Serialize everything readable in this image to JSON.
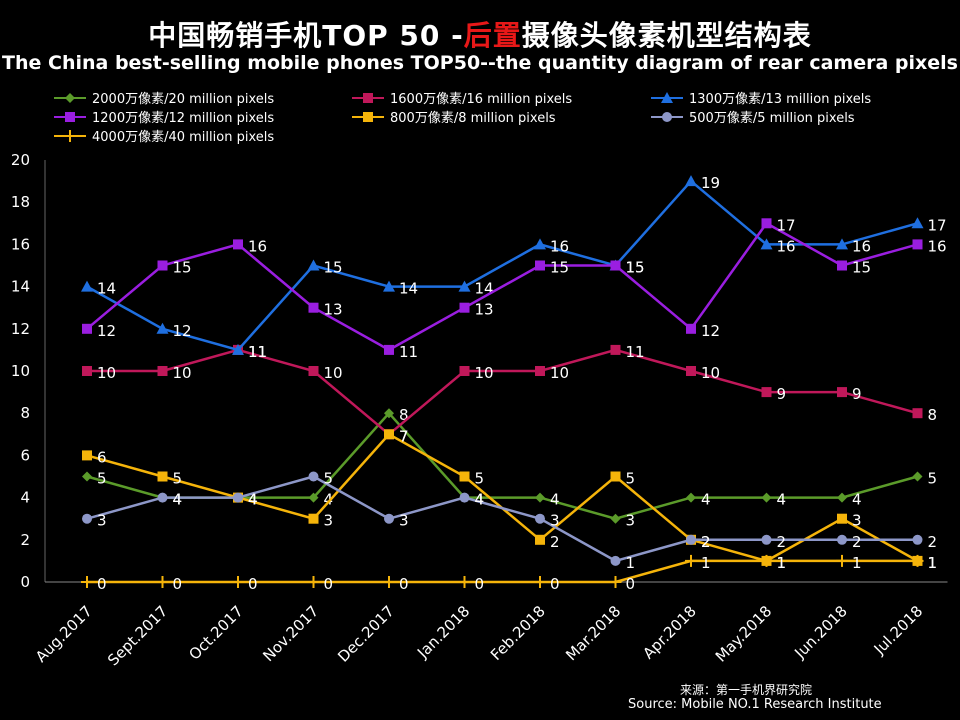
{
  "title": {
    "cn_prefix": "中国畅销手机TOP 50 -",
    "cn_highlight": "后置",
    "cn_suffix": "摄像头像素机型结构表",
    "en": "The China best-selling mobile phones TOP50--the quantity diagram of rear camera pixels"
  },
  "source": {
    "cn": "来源：第一手机界研究院",
    "en": "Source: Mobile NO.1 Research Institute"
  },
  "chart_data": {
    "type": "line",
    "title": "中国畅销手机TOP 50 -后置摄像头像素机型结构表",
    "ylim": [
      0,
      20
    ],
    "yticks": [
      0,
      2,
      4,
      6,
      8,
      10,
      12,
      14,
      16,
      18,
      20
    ],
    "categories": [
      "Aug.2017",
      "Sept.2017",
      "Oct.2017",
      "Nov.2017",
      "Dec.2017",
      "Jan.2018",
      "Feb.2018",
      "Mar.2018",
      "Apr.2018",
      "May.2018",
      "Jun.2018",
      "Jul.2018"
    ],
    "legend_position": "top",
    "series": [
      {
        "name": "2000万像素/20 million pixels",
        "color": "#5b9b2a",
        "marker": "diamond",
        "values": [
          5,
          4,
          4,
          4,
          8,
          4,
          4,
          3,
          4,
          4,
          4,
          5
        ]
      },
      {
        "name": "1600万像素/16 million pixels",
        "color": "#c0185a",
        "marker": "square",
        "values": [
          10,
          10,
          11,
          10,
          7,
          10,
          10,
          11,
          10,
          9,
          9,
          8
        ]
      },
      {
        "name": "1300万像素/13 million pixels",
        "color": "#1f6fe0",
        "marker": "triangle",
        "values": [
          14,
          12,
          11,
          15,
          14,
          14,
          16,
          15,
          19,
          16,
          16,
          17
        ]
      },
      {
        "name": "1200万像素/12 million pixels",
        "color": "#9a1ee0",
        "marker": "square",
        "values": [
          12,
          15,
          16,
          13,
          11,
          13,
          15,
          15,
          12,
          17,
          15,
          16
        ]
      },
      {
        "name": "800万像素/8 million pixels",
        "color": "#f5b40a",
        "marker": "square",
        "values": [
          6,
          5,
          4,
          3,
          7,
          5,
          2,
          5,
          2,
          1,
          3,
          1
        ]
      },
      {
        "name": "500万像素/5 million pixels",
        "color": "#8d97c8",
        "marker": "circle",
        "values": [
          3,
          4,
          4,
          5,
          3,
          4,
          3,
          1,
          2,
          2,
          2,
          2
        ]
      },
      {
        "name": "4000万像素/40 million pixels",
        "color": "#f5b40a",
        "marker": "plus",
        "values": [
          0,
          0,
          0,
          0,
          0,
          0,
          0,
          0,
          1,
          1,
          1,
          1
        ]
      }
    ]
  }
}
